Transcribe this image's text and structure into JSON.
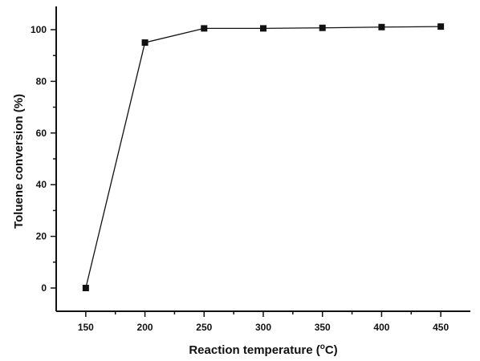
{
  "chart_data": {
    "type": "line",
    "xlabel": "Reaction temperature (",
    "xlabel_sup": "o",
    "xlabel_tail": "C)",
    "ylabel": "Toluene conversion (%)",
    "xlim": [
      125,
      475
    ],
    "ylim": [
      -9,
      109
    ],
    "x_ticks": [
      150,
      200,
      250,
      300,
      350,
      400,
      450
    ],
    "y_ticks": [
      0,
      20,
      40,
      60,
      80,
      100
    ],
    "x_minor_ticks": [
      175,
      225,
      275,
      325,
      375,
      425
    ],
    "y_minor_ticks": [
      10,
      30,
      50,
      70,
      90
    ],
    "grid": false,
    "legend": "none",
    "series": [
      {
        "marker": "square",
        "color": "#111111",
        "x": [
          150,
          200,
          250,
          300,
          350,
          400,
          450
        ],
        "y": [
          0,
          95,
          100.5,
          100.5,
          100.7,
          101,
          101.2
        ]
      }
    ]
  }
}
